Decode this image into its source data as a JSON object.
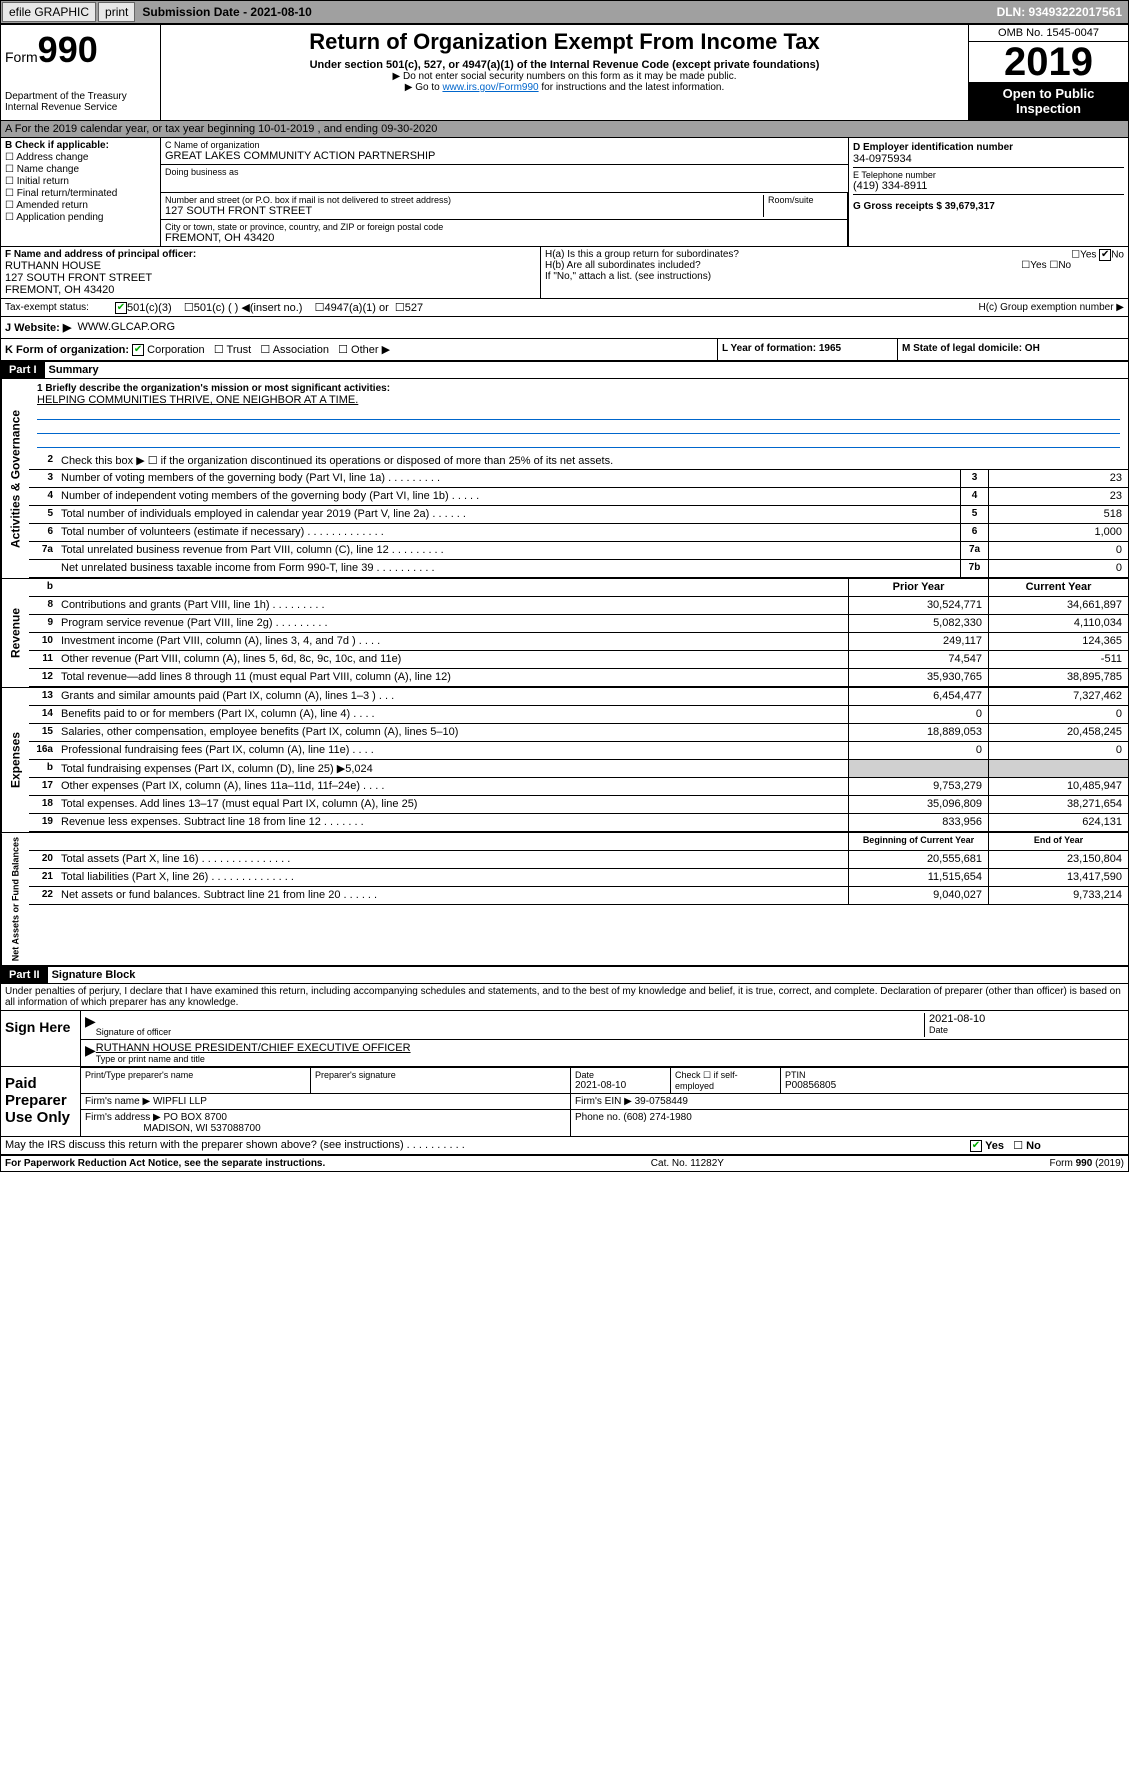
{
  "topbar": {
    "efile": "efile GRAPHIC",
    "print": "print",
    "sub_label": "Submission Date - 2021-08-10",
    "dln": "DLN: 93493222017561"
  },
  "header": {
    "form_prefix": "Form",
    "form_num": "990",
    "dept": "Department of the Treasury",
    "irs": "Internal Revenue Service",
    "title": "Return of Organization Exempt From Income Tax",
    "sub1": "Under section 501(c), 527, or 4947(a)(1) of the Internal Revenue Code (except private foundations)",
    "sub2": "▶ Do not enter social security numbers on this form as it may be made public.",
    "sub3_a": "▶ Go to ",
    "sub3_link": "www.irs.gov/Form990",
    "sub3_b": " for instructions and the latest information.",
    "omb": "OMB No. 1545-0047",
    "year": "2019",
    "open": "Open to Public Inspection"
  },
  "period": "A For the 2019 calendar year, or tax year beginning 10-01-2019    , and ending 09-30-2020",
  "check_b": {
    "header": "B Check if applicable:",
    "items": [
      "Address change",
      "Name change",
      "Initial return",
      "Final return/terminated",
      "Amended return",
      "Application pending"
    ]
  },
  "org": {
    "c_label": "C Name of organization",
    "name": "GREAT LAKES COMMUNITY ACTION PARTNERSHIP",
    "dba_label": "Doing business as",
    "addr_label": "Number and street (or P.O. box if mail is not delivered to street address)",
    "room_label": "Room/suite",
    "addr": "127 SOUTH FRONT STREET",
    "city_label": "City or town, state or province, country, and ZIP or foreign postal code",
    "city": "FREMONT, OH  43420"
  },
  "col_d": {
    "d_label": "D Employer identification number",
    "ein": "34-0975934",
    "e_label": "E Telephone number",
    "phone": "(419) 334-8911",
    "g_label": "G Gross receipts $ 39,679,317"
  },
  "officer": {
    "f_label": "F Name and address of principal officer:",
    "name": "RUTHANN HOUSE",
    "addr1": "127 SOUTH FRONT STREET",
    "addr2": "FREMONT, OH  43420"
  },
  "group": {
    "ha": "H(a)  Is this a group return for subordinates?",
    "hb": "H(b)  Are all subordinates included?",
    "hb_note": "If \"No,\" attach a list. (see instructions)",
    "hc": "H(c)  Group exemption number ▶",
    "yes": "Yes",
    "no": "No"
  },
  "tax_status": {
    "label": "Tax-exempt status:",
    "opt1": "501(c)(3)",
    "opt2": "501(c) (   ) ◀(insert no.)",
    "opt3": "4947(a)(1) or",
    "opt4": "527"
  },
  "website": {
    "label": "J     Website: ▶",
    "val": "WWW.GLCAP.ORG"
  },
  "korg": {
    "label": "K Form of organization:",
    "corp": "Corporation",
    "trust": "Trust",
    "assoc": "Association",
    "other": "Other ▶",
    "l": "L Year of formation: 1965",
    "m": "M State of legal domicile: OH"
  },
  "part1": {
    "header": "Part I",
    "title": "Summary"
  },
  "mission": {
    "label": "1  Briefly describe the organization's mission or most significant activities:",
    "text": "HELPING COMMUNITIES THRIVE, ONE NEIGHBOR AT A TIME."
  },
  "line2": "Check this box ▶ ☐  if the organization discontinued its operations or disposed of more than 25% of its net assets.",
  "lines_gov": [
    {
      "n": "3",
      "t": "Number of voting members of the governing body (Part VI, line 1a)   .    .    .    .    .    .    .    .    .",
      "b": "3",
      "v": "23"
    },
    {
      "n": "4",
      "t": "Number of independent voting members of the governing body (Part VI, line 1b)    .    .    .    .    .",
      "b": "4",
      "v": "23"
    },
    {
      "n": "5",
      "t": "Total number of individuals employed in calendar year 2019 (Part V, line 2a)    .    .    .    .    .    .",
      "b": "5",
      "v": "518"
    },
    {
      "n": "6",
      "t": "Total number of volunteers (estimate if necessary)    .    .    .    .    .    .    .    .    .    .    .    .    .",
      "b": "6",
      "v": "1,000"
    },
    {
      "n": "7a",
      "t": "Total unrelated business revenue from Part VIII, column (C), line 12   .    .    .    .    .    .    .    .    .",
      "b": "7a",
      "v": "0"
    },
    {
      "n": "",
      "t": "Net unrelated business taxable income from Form 990-T, line 39   .    .    .    .    .    .    .    .    .    .",
      "b": "7b",
      "v": "0"
    }
  ],
  "col_headers": {
    "b": "b",
    "prior": "Prior Year",
    "current": "Current Year",
    "beg": "Beginning of Current Year",
    "end": "End of Year"
  },
  "lines_rev": [
    {
      "n": "8",
      "t": "Contributions and grants (Part VIII, line 1h)    .    .    .    .    .    .    .    .    .",
      "p": "30,524,771",
      "c": "34,661,897"
    },
    {
      "n": "9",
      "t": "Program service revenue (Part VIII, line 2g)    .    .    .    .    .    .    .    .    .",
      "p": "5,082,330",
      "c": "4,110,034"
    },
    {
      "n": "10",
      "t": "Investment income (Part VIII, column (A), lines 3, 4, and 7d )    .    .    .    .",
      "p": "249,117",
      "c": "124,365"
    },
    {
      "n": "11",
      "t": "Other revenue (Part VIII, column (A), lines 5, 6d, 8c, 9c, 10c, and 11e)",
      "p": "74,547",
      "c": "-511"
    },
    {
      "n": "12",
      "t": "Total revenue—add lines 8 through 11 (must equal Part VIII, column (A), line 12)",
      "p": "35,930,765",
      "c": "38,895,785"
    }
  ],
  "lines_exp": [
    {
      "n": "13",
      "t": "Grants and similar amounts paid (Part IX, column (A), lines 1–3 )    .    .    .",
      "p": "6,454,477",
      "c": "7,327,462"
    },
    {
      "n": "14",
      "t": "Benefits paid to or for members (Part IX, column (A), line 4)    .    .    .    .",
      "p": "0",
      "c": "0"
    },
    {
      "n": "15",
      "t": "Salaries, other compensation, employee benefits (Part IX, column (A), lines 5–10)",
      "p": "18,889,053",
      "c": "20,458,245"
    },
    {
      "n": "16a",
      "t": "Professional fundraising fees (Part IX, column (A), line 11e)    .    .    .    .",
      "p": "0",
      "c": "0"
    },
    {
      "n": "b",
      "t": "Total fundraising expenses (Part IX, column (D), line 25) ▶5,024",
      "p": "",
      "c": "",
      "gray": true
    },
    {
      "n": "17",
      "t": "Other expenses (Part IX, column (A), lines 11a–11d, 11f–24e)    .    .    .    .",
      "p": "9,753,279",
      "c": "10,485,947"
    },
    {
      "n": "18",
      "t": "Total expenses. Add lines 13–17 (must equal Part IX, column (A), line 25)",
      "p": "35,096,809",
      "c": "38,271,654"
    },
    {
      "n": "19",
      "t": "Revenue less expenses. Subtract line 18 from line 12   .    .    .    .    .    .    .",
      "p": "833,956",
      "c": "624,131"
    }
  ],
  "lines_net": [
    {
      "n": "20",
      "t": "Total assets (Part X, line 16)   .    .    .    .    .    .    .    .    .    .    .    .    .    .    .",
      "p": "20,555,681",
      "c": "23,150,804"
    },
    {
      "n": "21",
      "t": "Total liabilities (Part X, line 26)   .    .    .    .    .    .    .    .    .    .    .    .    .    .",
      "p": "11,515,654",
      "c": "13,417,590"
    },
    {
      "n": "22",
      "t": "Net assets or fund balances. Subtract line 21 from line 20   .    .    .    .    .    .",
      "p": "9,040,027",
      "c": "9,733,214"
    }
  ],
  "side_labels": {
    "gov": "Activities & Governance",
    "rev": "Revenue",
    "exp": "Expenses",
    "net": "Net Assets or Fund Balances"
  },
  "part2": {
    "header": "Part II",
    "title": "Signature Block"
  },
  "perjury": "Under penalties of perjury, I declare that I have examined this return, including accompanying schedules and statements, and to the best of my knowledge and belief, it is true, correct, and complete. Declaration of preparer (other than officer) is based on all information of which preparer has any knowledge.",
  "sign": {
    "here": "Sign Here",
    "sig_label": "Signature of officer",
    "date": "2021-08-10",
    "date_label": "Date",
    "name": "RUTHANN HOUSE  PRESIDENT/CHIEF EXECUTIVE OFFICER",
    "name_label": "Type or print name and title"
  },
  "paid": {
    "label": "Paid Preparer Use Only",
    "h1": "Print/Type preparer's name",
    "h2": "Preparer's signature",
    "h3": "Date",
    "h3v": "2021-08-10",
    "h4": "Check ☐ if self-employed",
    "h5": "PTIN",
    "ptin": "P00856805",
    "firm_name_l": "Firm's name      ▶",
    "firm_name": "WIPFLI LLP",
    "firm_ein_l": "Firm's EIN ▶",
    "firm_ein": "39-0758449",
    "firm_addr_l": "Firm's address ▶",
    "firm_addr": "PO BOX 8700",
    "firm_city": "MADISON, WI  537088700",
    "phone_l": "Phone no.",
    "phone": "(608) 274-1980"
  },
  "discuss": "May the IRS discuss this return with the preparer shown above? (see instructions)    .    .    .    .    .    .    .    .    .    .",
  "footer": {
    "pra": "For Paperwork Reduction Act Notice, see the separate instructions.",
    "cat": "Cat. No. 11282Y",
    "form": "Form 990 (2019)"
  }
}
